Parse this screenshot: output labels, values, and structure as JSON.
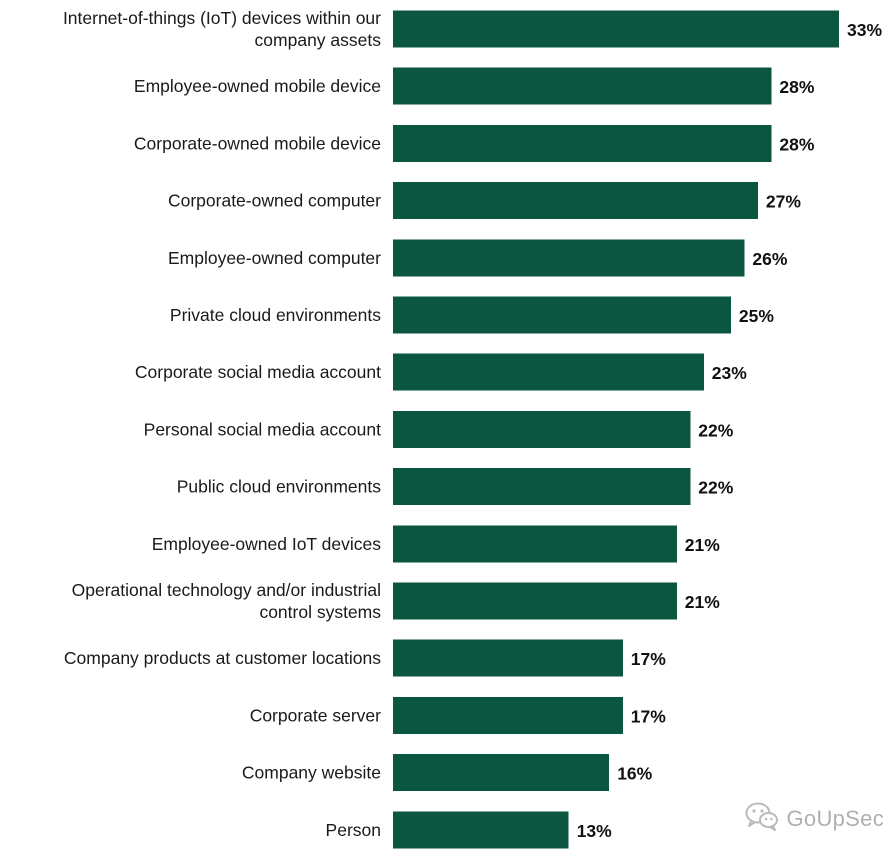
{
  "chart_data": {
    "type": "bar",
    "orientation": "horizontal",
    "categories": [
      "Internet-of-things (IoT) devices within our company assets",
      "Employee-owned mobile device",
      "Corporate-owned mobile device",
      "Corporate-owned computer",
      "Employee-owned computer",
      "Private cloud environments",
      "Corporate social media account",
      "Personal social media account",
      "Public cloud environments",
      "Employee-owned IoT devices",
      "Operational technology and/or industrial control systems",
      "Company products at customer locations",
      "Corporate server",
      "Company website",
      "Person"
    ],
    "category_lines": [
      [
        "Internet-of-things (IoT) devices within our",
        "company assets"
      ],
      [
        "Employee-owned mobile device"
      ],
      [
        "Corporate-owned mobile device"
      ],
      [
        "Corporate-owned computer"
      ],
      [
        "Employee-owned computer"
      ],
      [
        "Private cloud environments"
      ],
      [
        "Corporate social media account"
      ],
      [
        "Personal social media account"
      ],
      [
        "Public cloud environments"
      ],
      [
        "Employee-owned IoT devices"
      ],
      [
        "Operational technology and/or industrial",
        "control systems"
      ],
      [
        "Company products at customer locations"
      ],
      [
        "Corporate server"
      ],
      [
        "Company website"
      ],
      [
        "Person"
      ]
    ],
    "values": [
      33,
      28,
      28,
      27,
      26,
      25,
      23,
      22,
      22,
      21,
      21,
      17,
      17,
      16,
      13
    ],
    "value_labels": [
      "33%",
      "28%",
      "28%",
      "27%",
      "26%",
      "25%",
      "23%",
      "22%",
      "22%",
      "21%",
      "21%",
      "17%",
      "17%",
      "16%",
      "13%"
    ],
    "bar_color": "#0b5641",
    "xlim": [
      0,
      33
    ],
    "title": "",
    "xlabel": "",
    "ylabel": "",
    "grid": false,
    "legend": "none"
  },
  "watermark": {
    "text": "GoUpSec",
    "icon": "wechat-icon"
  }
}
